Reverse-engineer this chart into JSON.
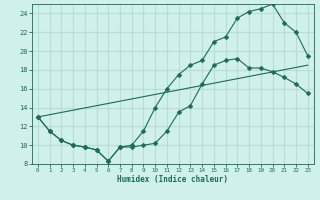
{
  "xlabel": "Humidex (Indice chaleur)",
  "ylabel": "",
  "bg_color": "#cff0eb",
  "grid_color": "#b8ddd8",
  "line_color": "#1a6b5a",
  "xlim": [
    -0.5,
    23.5
  ],
  "ylim": [
    8,
    25
  ],
  "xticks": [
    0,
    1,
    2,
    3,
    4,
    5,
    6,
    7,
    8,
    9,
    10,
    11,
    12,
    13,
    14,
    15,
    16,
    17,
    18,
    19,
    20,
    21,
    22,
    23
  ],
  "yticks": [
    8,
    10,
    12,
    14,
    16,
    18,
    20,
    22,
    24
  ],
  "line1_x": [
    0,
    1,
    2,
    3,
    4,
    5,
    6,
    7,
    8,
    9,
    10,
    11,
    12,
    13,
    14,
    15,
    16,
    17,
    18,
    19,
    20,
    21,
    22,
    23
  ],
  "line1_y": [
    13,
    11.5,
    10.5,
    10.0,
    9.8,
    9.5,
    8.3,
    9.8,
    9.8,
    10.0,
    10.2,
    11.5,
    13.5,
    14.2,
    16.5,
    18.5,
    19.0,
    19.2,
    18.2,
    18.2,
    17.8,
    17.2,
    16.5,
    15.5
  ],
  "line2_x": [
    0,
    1,
    2,
    3,
    4,
    5,
    6,
    7,
    8,
    9,
    10,
    11,
    12,
    13,
    14,
    15,
    16,
    17,
    18,
    19,
    20,
    21,
    22,
    23
  ],
  "line2_y": [
    13,
    11.5,
    10.5,
    10.0,
    9.8,
    9.5,
    8.3,
    9.8,
    10.0,
    11.5,
    14.0,
    16.0,
    17.5,
    18.5,
    19.0,
    21.0,
    21.5,
    23.5,
    24.2,
    24.5,
    25.0,
    23.0,
    22.0,
    19.5
  ],
  "line3_x": [
    0,
    23
  ],
  "line3_y": [
    13.0,
    18.5
  ]
}
